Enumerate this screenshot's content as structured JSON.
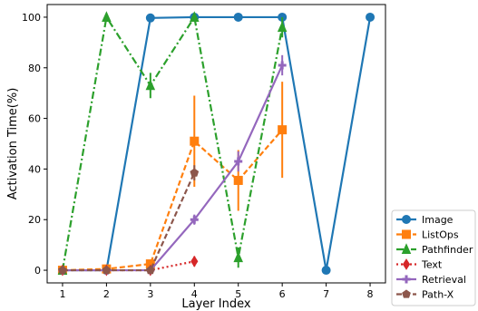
{
  "chart_data": {
    "type": "line",
    "xlabel": "Layer Index",
    "ylabel": "Activation Time(%)",
    "x_ticks": [
      1,
      2,
      3,
      4,
      5,
      6,
      7,
      8
    ],
    "y_ticks": [
      0,
      20,
      40,
      60,
      80,
      100
    ],
    "xlim": [
      0.65,
      8.35
    ],
    "ylim": [
      -5,
      105
    ],
    "grid": false,
    "legend_position": "outside-right-bottom",
    "series": [
      {
        "name": "Image",
        "color": "#1f77b4",
        "line_style": "solid",
        "marker": "circle",
        "x": [
          1,
          2,
          3,
          4,
          5,
          6,
          7,
          8
        ],
        "y": [
          0,
          0,
          99.7,
          100,
          100,
          100,
          0,
          100
        ],
        "err": [
          0,
          0,
          0,
          0,
          0,
          0,
          0,
          0
        ]
      },
      {
        "name": "ListOps",
        "color": "#ff7f0e",
        "line_style": "dashed",
        "marker": "square",
        "x": [
          1,
          2,
          3,
          4,
          5,
          6
        ],
        "y": [
          0,
          0.5,
          2.5,
          51,
          35.5,
          55.5
        ],
        "err": [
          0,
          0,
          0,
          18,
          12,
          19
        ]
      },
      {
        "name": "Pathfinder",
        "color": "#2ca02c",
        "line_style": "dashdot",
        "marker": "triangle",
        "x": [
          1,
          2,
          3,
          4,
          5,
          6
        ],
        "y": [
          0,
          100,
          73,
          100,
          5,
          96
        ],
        "err": [
          0,
          0,
          5,
          0,
          4,
          4
        ]
      },
      {
        "name": "Text",
        "color": "#d62728",
        "line_style": "dotted",
        "marker": "diamond",
        "x": [
          1,
          2,
          3,
          4
        ],
        "y": [
          0,
          0,
          0,
          3.5
        ],
        "err": [
          0,
          0,
          0,
          2
        ]
      },
      {
        "name": "Retrieval",
        "color": "#9467bd",
        "line_style": "solid",
        "marker": "plus",
        "x": [
          1,
          2,
          3,
          4,
          5,
          6
        ],
        "y": [
          0,
          0,
          0,
          20,
          43,
          81
        ],
        "err": [
          0,
          0,
          0,
          2,
          4,
          4
        ]
      },
      {
        "name": "Path-X",
        "color": "#8c564b",
        "line_style": "dashed",
        "marker": "pentagon",
        "x": [
          1,
          2,
          3,
          4
        ],
        "y": [
          0,
          0,
          0,
          38.5
        ],
        "err": [
          0,
          0,
          0,
          3
        ]
      }
    ]
  }
}
